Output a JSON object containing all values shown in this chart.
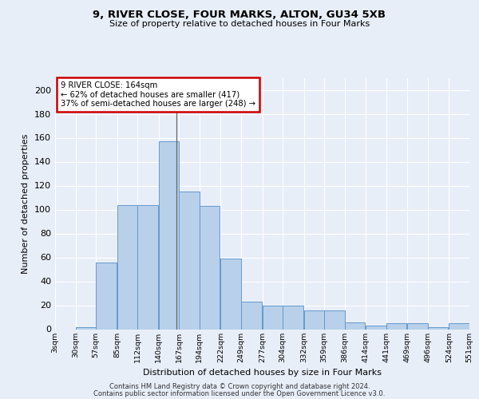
{
  "title1": "9, RIVER CLOSE, FOUR MARKS, ALTON, GU34 5XB",
  "title2": "Size of property relative to detached houses in Four Marks",
  "xlabel": "Distribution of detached houses by size in Four Marks",
  "ylabel": "Number of detached properties",
  "bin_labels": [
    "3sqm",
    "30sqm",
    "57sqm",
    "85sqm",
    "112sqm",
    "140sqm",
    "167sqm",
    "194sqm",
    "222sqm",
    "249sqm",
    "277sqm",
    "304sqm",
    "332sqm",
    "359sqm",
    "386sqm",
    "414sqm",
    "441sqm",
    "469sqm",
    "496sqm",
    "524sqm",
    "551sqm"
  ],
  "bar_values": [
    0,
    2,
    56,
    104,
    104,
    157,
    115,
    103,
    59,
    23,
    20,
    20,
    16,
    16,
    6,
    3,
    5,
    5,
    2,
    5
  ],
  "bin_edges": [
    3,
    30,
    57,
    85,
    112,
    140,
    167,
    194,
    222,
    249,
    277,
    304,
    332,
    359,
    386,
    414,
    441,
    469,
    496,
    524,
    551
  ],
  "bar_color": "#b8d0ea",
  "bar_edge_color": "#6699cc",
  "property_size": 164,
  "property_label": "9 RIVER CLOSE: 164sqm",
  "annotation_line1": "← 62% of detached houses are smaller (417)",
  "annotation_line2": "37% of semi-detached houses are larger (248) →",
  "annotation_box_facecolor": "#ffffff",
  "annotation_box_edgecolor": "#cc0000",
  "footer1": "Contains HM Land Registry data © Crown copyright and database right 2024.",
  "footer2": "Contains public sector information licensed under the Open Government Licence v3.0.",
  "ylim": [
    0,
    210
  ],
  "yticks": [
    0,
    20,
    40,
    60,
    80,
    100,
    120,
    140,
    160,
    180,
    200
  ],
  "bg_color": "#e8eef8",
  "plot_bg_color": "#e8eef8",
  "title1_fontsize": 9.5,
  "title2_fontsize": 8.0
}
